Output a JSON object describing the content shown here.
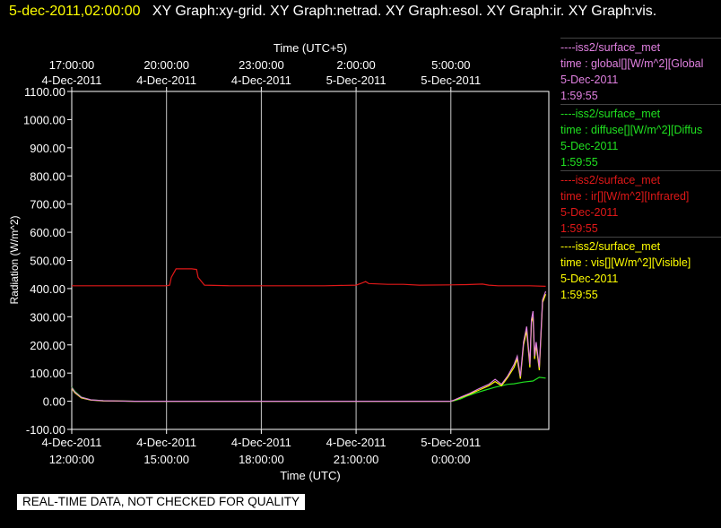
{
  "title": {
    "timestamp": "5-dec-2011,02:00:00",
    "graphs": "XY Graph:xy-grid.  XY Graph:netrad.  XY Graph:esol.  XY Graph:ir.  XY Graph:vis."
  },
  "footer": {
    "warning": "REAL-TIME DATA, NOT CHECKED FOR QUALITY"
  },
  "legend": [
    {
      "source": "----iss2/surface_met",
      "variable": "time : global[][W/m^2][Global",
      "date": "5-Dec-2011",
      "time": "1:59:55",
      "color": "#e080e0"
    },
    {
      "source": "----iss2/surface_met",
      "variable": "time : diffuse[][W/m^2][Diffus",
      "date": "5-Dec-2011",
      "time": "1:59:55",
      "color": "#20e020"
    },
    {
      "source": "----iss2/surface_met",
      "variable": "time : ir[][W/m^2][Infrared]",
      "date": "5-Dec-2011",
      "time": "1:59:55",
      "color": "#e01818"
    },
    {
      "source": "----iss2/surface_met",
      "variable": "time : vis[][W/m^2][Visible]",
      "date": "5-Dec-2011",
      "time": "1:59:55",
      "color": "#ffff00"
    }
  ],
  "chart_data": {
    "type": "line",
    "title": "",
    "xlabel": "Time (UTC)",
    "x2label": "Time (UTC+5)",
    "ylabel": "Radiation (W/m^2)",
    "ylim": [
      -100,
      1100
    ],
    "yticks": [
      "1100.00",
      "1000.00",
      "900.00",
      "800.00",
      "700.00",
      "600.00",
      "500.00",
      "400.00",
      "300.00",
      "200.00",
      "100.00",
      "0.00",
      "-100.00"
    ],
    "xlim_hours": [
      0,
      15.1
    ],
    "xticks_utc": [
      {
        "date": "4-Dec-2011",
        "time": "12:00:00",
        "h": 0
      },
      {
        "date": "4-Dec-2011",
        "time": "15:00:00",
        "h": 3
      },
      {
        "date": "4-Dec-2011",
        "time": "18:00:00",
        "h": 6
      },
      {
        "date": "4-Dec-2011",
        "time": "21:00:00",
        "h": 9
      },
      {
        "date": "5-Dec-2011",
        "time": "0:00:00",
        "h": 12
      }
    ],
    "xticks_local": [
      {
        "date": "4-Dec-2011",
        "time": "17:00:00",
        "h": 0
      },
      {
        "date": "4-Dec-2011",
        "time": "20:00:00",
        "h": 3
      },
      {
        "date": "4-Dec-2011",
        "time": "23:00:00",
        "h": 6
      },
      {
        "date": "5-Dec-2011",
        "time": "2:00:00",
        "h": 9
      },
      {
        "date": "5-Dec-2011",
        "time": "5:00:00",
        "h": 12
      }
    ],
    "grid": "vertical",
    "series": [
      {
        "name": "ir",
        "color": "#e01818",
        "x": [
          0,
          3,
          3.1,
          3.15,
          3.3,
          3.5,
          3.8,
          3.95,
          4.0,
          4.2,
          5,
          6,
          7,
          8,
          9,
          9.2,
          9.3,
          9.4,
          10,
          10.5,
          11,
          12,
          12.5,
          13,
          13.2,
          13.5,
          14,
          14.5,
          15
        ],
        "y": [
          410,
          410,
          412,
          440,
          470,
          470,
          470,
          468,
          440,
          412,
          410,
          410,
          410,
          410,
          412,
          420,
          425,
          418,
          415,
          415,
          412,
          413,
          414,
          416,
          412,
          410,
          410,
          410,
          408
        ]
      },
      {
        "name": "diffuse",
        "color": "#20e020",
        "x": [
          0,
          0.1,
          0.3,
          0.6,
          1,
          2,
          4,
          6,
          8,
          10,
          11,
          12,
          12.1,
          12.3,
          12.5,
          12.8,
          13.1,
          13.4,
          13.8,
          14,
          14.3,
          14.6,
          14.8,
          15
        ],
        "y": [
          50,
          35,
          15,
          5,
          2,
          0,
          0,
          0,
          0,
          0,
          0,
          0,
          2,
          8,
          18,
          30,
          40,
          50,
          60,
          62,
          68,
          72,
          85,
          82
        ]
      },
      {
        "name": "vis",
        "color": "#ffff00",
        "x": [
          0,
          0.1,
          0.3,
          0.6,
          1,
          2,
          4,
          6,
          8,
          10,
          11,
          12,
          12.1,
          12.3,
          12.6,
          12.9,
          13.2,
          13.4,
          13.6,
          13.8,
          14.0,
          14.1,
          14.2,
          14.3,
          14.4,
          14.5,
          14.55,
          14.6,
          14.65,
          14.7,
          14.8,
          14.9,
          15
        ],
        "y": [
          45,
          30,
          12,
          4,
          1,
          0,
          0,
          0,
          0,
          0,
          0,
          0,
          3,
          12,
          25,
          40,
          55,
          70,
          55,
          85,
          120,
          150,
          80,
          200,
          250,
          120,
          280,
          300,
          150,
          200,
          110,
          350,
          380
        ]
      },
      {
        "name": "global",
        "color": "#e080e0",
        "x": [
          0,
          0.1,
          0.3,
          0.6,
          1,
          2,
          4,
          6,
          8,
          10,
          11,
          12,
          12.1,
          12.3,
          12.6,
          12.9,
          13.2,
          13.4,
          13.6,
          13.8,
          14.0,
          14.1,
          14.2,
          14.3,
          14.4,
          14.5,
          14.55,
          14.6,
          14.65,
          14.7,
          14.8,
          14.9,
          15
        ],
        "y": [
          48,
          32,
          14,
          5,
          2,
          0,
          0,
          0,
          0,
          0,
          0,
          0,
          4,
          14,
          28,
          45,
          60,
          78,
          60,
          90,
          130,
          160,
          88,
          210,
          265,
          130,
          290,
          320,
          160,
          210,
          120,
          360,
          390
        ]
      }
    ]
  }
}
